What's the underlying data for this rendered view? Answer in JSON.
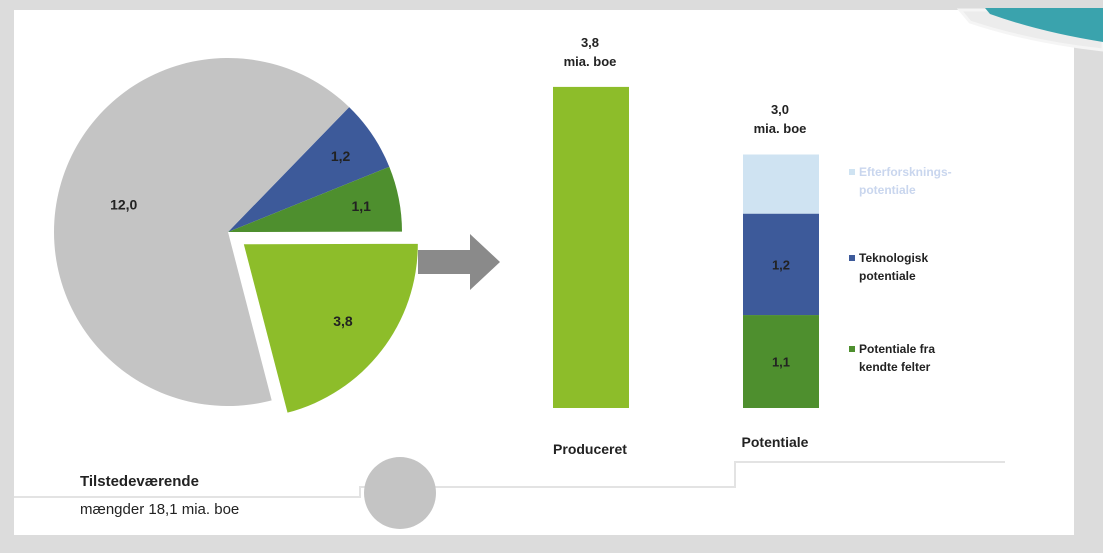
{
  "chart_data": [
    {
      "type": "pie",
      "slices": [
        {
          "label": "12,0",
          "value": 12.0,
          "color": "#c4c4c4",
          "exploded": false
        },
        {
          "label": "1,2",
          "value": 1.2,
          "color": "#3d5a9a",
          "exploded": false
        },
        {
          "label": "1,1",
          "value": 1.1,
          "color": "#4e8f2e",
          "exploded": false
        },
        {
          "label": "3,8",
          "value": 3.8,
          "color": "#8dbd2a",
          "exploded": true
        }
      ],
      "caption_line1": "Tilstedeværende",
      "caption_line2": "mængder 18,1 mia. boe"
    },
    {
      "type": "bar",
      "categories": [
        "Produceret",
        "Potentiale"
      ],
      "series": [
        {
          "name": "Produceret",
          "values": [
            3.8,
            0
          ],
          "color": "#8dbd2a"
        },
        {
          "name": "Potentiale fra kendte felter",
          "values": [
            0,
            1.1
          ],
          "color": "#4e8f2e"
        },
        {
          "name": "Teknologisk potentiale",
          "values": [
            0,
            1.2
          ],
          "color": "#3d5a9a"
        },
        {
          "name": "Efterforsknings-potentiale",
          "values": [
            0,
            0.7
          ],
          "color": "#cfe3f2"
        }
      ],
      "segment_labels": {
        "produceret": "",
        "kendte": "1,1",
        "teknologisk": "1,2",
        "efterforskning": ""
      },
      "totals": [
        {
          "line1": "3,8",
          "line2": "mia. boe"
        },
        {
          "line1": "3,0",
          "line2": "mia. boe"
        }
      ],
      "legend": [
        {
          "line1": "Efterforsknings-",
          "line2": "potentiale",
          "color": "#cfe3f2",
          "faded": true
        },
        {
          "line1": "Teknologisk",
          "line2": "potentiale",
          "color": "#3d5a9a",
          "faded": false
        },
        {
          "line1": "Potentiale fra",
          "line2": "kendte felter",
          "color": "#4e8f2e",
          "faded": false
        }
      ],
      "legend_placement": "right",
      "grid": false
    }
  ],
  "colors": {
    "arrow": "#8a8a8a",
    "panel": "#ffffff",
    "outer": "#dcdcdc",
    "corner_accent": "#3aa3ad",
    "bottom_circle": "#c4c4c4"
  }
}
